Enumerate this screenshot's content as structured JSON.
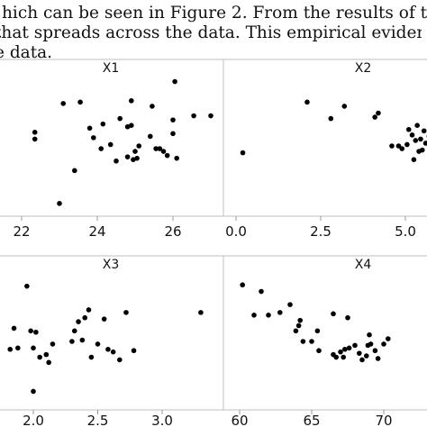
{
  "caption_lines": [
    "hich can be seen in Figure 2. From the results of the scat",
    "that spreads across the data. This empirical evidence ind",
    "e data."
  ],
  "chart_data": [
    {
      "type": "scatter",
      "title": "X1",
      "xlim": [
        21.5,
        27.2
      ],
      "ylim": [
        0,
        1
      ],
      "xticks": [
        22,
        24,
        26
      ],
      "xtick_labels": [
        "22",
        "24",
        "26"
      ],
      "points": [
        [
          22.35,
          0.6
        ],
        [
          22.35,
          0.55
        ],
        [
          23.0,
          0.08
        ],
        [
          23.1,
          0.81
        ],
        [
          23.4,
          0.32
        ],
        [
          23.55,
          0.82
        ],
        [
          23.8,
          0.63
        ],
        [
          23.9,
          0.56
        ],
        [
          24.1,
          0.48
        ],
        [
          24.15,
          0.66
        ],
        [
          24.35,
          0.51
        ],
        [
          24.5,
          0.39
        ],
        [
          24.6,
          0.7
        ],
        [
          24.8,
          0.42
        ],
        [
          24.8,
          0.64
        ],
        [
          24.9,
          0.65
        ],
        [
          24.9,
          0.83
        ],
        [
          24.95,
          0.4
        ],
        [
          25.0,
          0.46
        ],
        [
          25.05,
          0.41
        ],
        [
          25.1,
          0.5
        ],
        [
          25.4,
          0.57
        ],
        [
          25.45,
          0.79
        ],
        [
          25.55,
          0.48
        ],
        [
          25.65,
          0.48
        ],
        [
          25.75,
          0.46
        ],
        [
          25.85,
          0.43
        ],
        [
          26.0,
          0.59
        ],
        [
          26.0,
          0.69
        ],
        [
          26.05,
          0.97
        ],
        [
          26.1,
          0.41
        ],
        [
          26.55,
          0.72
        ],
        [
          27.0,
          0.72
        ]
      ]
    },
    {
      "type": "scatter",
      "title": "X2",
      "xlim": [
        -0.2,
        6.0
      ],
      "ylim": [
        0,
        1
      ],
      "xticks": [
        0.0,
        2.5,
        5.0
      ],
      "xtick_labels": [
        "0.0",
        "2.5",
        "5.0"
      ],
      "points": [
        [
          0.2,
          0.45
        ],
        [
          2.1,
          0.82
        ],
        [
          2.8,
          0.7
        ],
        [
          3.2,
          0.79
        ],
        [
          4.1,
          0.71
        ],
        [
          4.2,
          0.74
        ],
        [
          4.6,
          0.5
        ],
        [
          4.8,
          0.5
        ],
        [
          4.9,
          0.48
        ],
        [
          5.05,
          0.51
        ],
        [
          5.1,
          0.62
        ],
        [
          5.2,
          0.58
        ],
        [
          5.25,
          0.4
        ],
        [
          5.3,
          0.54
        ],
        [
          5.35,
          0.65
        ],
        [
          5.4,
          0.46
        ],
        [
          5.45,
          0.55
        ],
        [
          5.5,
          0.47
        ],
        [
          5.55,
          0.61
        ],
        [
          5.6,
          0.52
        ],
        [
          5.7,
          0.57
        ],
        [
          5.75,
          0.43
        ],
        [
          5.8,
          0.74
        ],
        [
          5.85,
          0.5
        ]
      ]
    },
    {
      "type": "scatter",
      "title": "X3",
      "xlim": [
        1.8,
        3.35
      ],
      "ylim": [
        0,
        1
      ],
      "xticks": [
        2.0,
        2.5,
        3.0
      ],
      "xtick_labels": [
        "2.0",
        "2.5",
        "3.0"
      ],
      "points": [
        [
          1.82,
          0.44
        ],
        [
          1.85,
          0.6
        ],
        [
          1.88,
          0.45
        ],
        [
          1.95,
          0.92
        ],
        [
          1.98,
          0.58
        ],
        [
          2.0,
          0.45
        ],
        [
          2.0,
          0.12
        ],
        [
          2.02,
          0.57
        ],
        [
          2.05,
          0.38
        ],
        [
          2.1,
          0.4
        ],
        [
          2.12,
          0.34
        ],
        [
          2.15,
          0.48
        ],
        [
          2.3,
          0.5
        ],
        [
          2.32,
          0.58
        ],
        [
          2.35,
          0.65
        ],
        [
          2.38,
          0.51
        ],
        [
          2.4,
          0.68
        ],
        [
          2.43,
          0.74
        ],
        [
          2.45,
          0.38
        ],
        [
          2.5,
          0.48
        ],
        [
          2.55,
          0.67
        ],
        [
          2.58,
          0.44
        ],
        [
          2.62,
          0.42
        ],
        [
          2.67,
          0.36
        ],
        [
          2.72,
          0.72
        ],
        [
          2.78,
          0.43
        ],
        [
          3.3,
          0.72
        ]
      ]
    },
    {
      "type": "scatter",
      "title": "X4",
      "xlim": [
        59.5,
        72.5
      ],
      "ylim": [
        0,
        1
      ],
      "xticks": [
        60,
        65,
        70
      ],
      "xtick_labels": [
        "60",
        "65",
        "70"
      ],
      "points": [
        [
          60.2,
          0.93
        ],
        [
          61.0,
          0.7
        ],
        [
          61.5,
          0.88
        ],
        [
          62.0,
          0.7
        ],
        [
          62.8,
          0.72
        ],
        [
          63.5,
          0.78
        ],
        [
          63.9,
          0.58
        ],
        [
          64.1,
          0.62
        ],
        [
          64.2,
          0.66
        ],
        [
          64.4,
          0.5
        ],
        [
          65.0,
          0.5
        ],
        [
          65.4,
          0.58
        ],
        [
          65.5,
          0.43
        ],
        [
          66.5,
          0.71
        ],
        [
          66.5,
          0.4
        ],
        [
          66.7,
          0.38
        ],
        [
          67.0,
          0.42
        ],
        [
          67.2,
          0.38
        ],
        [
          67.3,
          0.44
        ],
        [
          67.5,
          0.68
        ],
        [
          67.6,
          0.45
        ],
        [
          68.0,
          0.47
        ],
        [
          68.3,
          0.41
        ],
        [
          68.5,
          0.36
        ],
        [
          68.8,
          0.39
        ],
        [
          68.9,
          0.47
        ],
        [
          69.0,
          0.55
        ],
        [
          69.1,
          0.48
        ],
        [
          69.4,
          0.43
        ],
        [
          69.6,
          0.37
        ],
        [
          70.0,
          0.48
        ],
        [
          70.3,
          0.52
        ]
      ]
    }
  ]
}
